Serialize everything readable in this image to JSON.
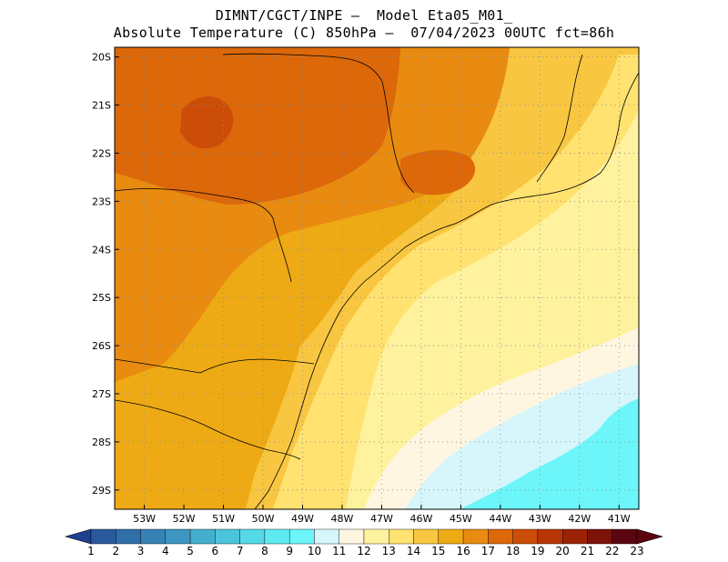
{
  "header": {
    "line1": "DIMNT/CGCT/INPE –  Model Eta05_M01_",
    "line2": "Absolute Temperature (C) 850hPa –  07/04/2023 00UTC fct=86h"
  },
  "map": {
    "lon_range": [
      -53.75,
      -40.5
    ],
    "lat_range": [
      -29.4,
      -19.8
    ],
    "lon_ticks": [
      "53W",
      "52W",
      "51W",
      "50W",
      "49W",
      "48W",
      "47W",
      "46W",
      "45W",
      "44W",
      "43W",
      "42W",
      "41W"
    ],
    "lat_ticks": [
      "20S",
      "21S",
      "22S",
      "23S",
      "24S",
      "25S",
      "26S",
      "27S",
      "28S",
      "29S"
    ]
  },
  "colorbar": {
    "labels": [
      "1",
      "2",
      "3",
      "4",
      "5",
      "6",
      "7",
      "8",
      "9",
      "10",
      "11",
      "12",
      "13",
      "14",
      "15",
      "16",
      "17",
      "18",
      "19",
      "20",
      "21",
      "22",
      "23"
    ],
    "colors": [
      "#1f3f8f",
      "#2a5a9c",
      "#2f6ea8",
      "#3682b4",
      "#3d97c2",
      "#44aecf",
      "#4cc4dc",
      "#55d8e8",
      "#5fe9f2",
      "#6cf6fa",
      "#d6f6fb",
      "#fff6e1",
      "#fff29e",
      "#ffe270",
      "#f8c640",
      "#eeaa14",
      "#e88b10",
      "#dc680a",
      "#cc4d07",
      "#b63605",
      "#9b2205",
      "#7d1208",
      "#5a0510"
    ]
  },
  "field_colors": {
    "t20": "#cc4d07",
    "t19": "#dc680a",
    "t18": "#e88b10",
    "t17": "#eeaa14",
    "t16": "#f8c640",
    "t15": "#ffe270",
    "t14": "#fff29e",
    "t13": "#fff6e1",
    "t12": "#d6f6fb",
    "t11": "#6cf6fa"
  }
}
